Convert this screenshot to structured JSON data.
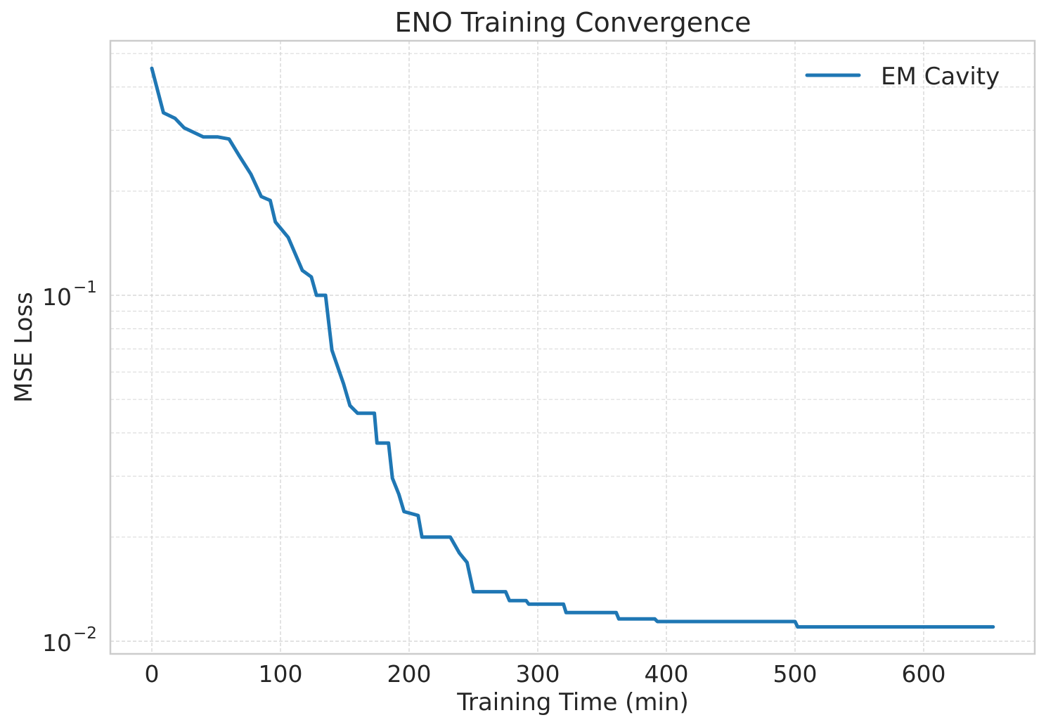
{
  "chart_data": {
    "type": "line",
    "title": "ENO Training Convergence",
    "xlabel": "Training Time (min)",
    "ylabel": "MSE Loss",
    "xscale": "linear",
    "yscale": "log",
    "xlim": [
      -32,
      686
    ],
    "ylim": [
      0.0093,
      0.58
    ],
    "xticks": [
      0,
      100,
      200,
      300,
      400,
      500,
      600
    ],
    "xtick_labels": [
      "0",
      "100",
      "200",
      "300",
      "400",
      "500",
      "600"
    ],
    "yticks": [
      0.1,
      0.01
    ],
    "ytick_labels": [
      {
        "base": "10",
        "exp": "−1"
      },
      {
        "base": "10",
        "exp": "−2"
      }
    ],
    "grid": true,
    "legend_position": "upper right",
    "series": [
      {
        "name": "EM Cavity",
        "color": "#1f77b4",
        "x": [
          0,
          9,
          18,
          25,
          40,
          51,
          60,
          68,
          77,
          85,
          92,
          96,
          106,
          117,
          124,
          128,
          135,
          140,
          149,
          154,
          160,
          173,
          175,
          184,
          187,
          192,
          196,
          207,
          210,
          232,
          239,
          245,
          250,
          275,
          278,
          291,
          293,
          320,
          322,
          361,
          363,
          391,
          393,
          500,
          502,
          654
        ],
        "values": [
          0.453,
          0.337,
          0.325,
          0.305,
          0.287,
          0.287,
          0.283,
          0.253,
          0.224,
          0.193,
          0.188,
          0.163,
          0.147,
          0.118,
          0.113,
          0.1,
          0.1,
          0.0694,
          0.0555,
          0.048,
          0.0456,
          0.0456,
          0.0374,
          0.0374,
          0.0296,
          0.0266,
          0.0237,
          0.0231,
          0.02,
          0.02,
          0.018,
          0.0169,
          0.0139,
          0.0139,
          0.0131,
          0.0131,
          0.0128,
          0.0128,
          0.0121,
          0.0121,
          0.0116,
          0.0116,
          0.0114,
          0.0114,
          0.011,
          0.011
        ]
      }
    ]
  },
  "colors": {
    "series": "#1f77b4",
    "frame": "#cccccc",
    "grid": "#d0d0d0",
    "text": "#262626"
  }
}
